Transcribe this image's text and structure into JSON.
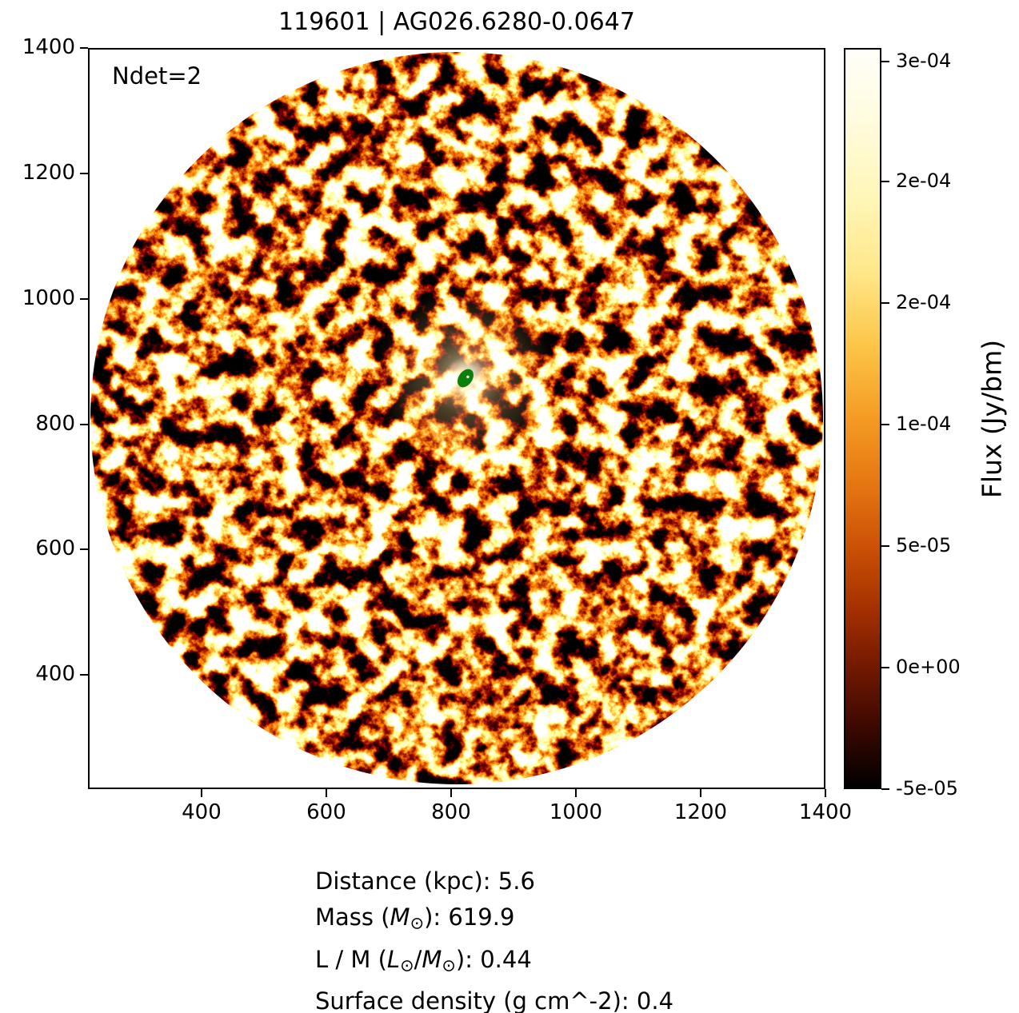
{
  "title": "119601 | AG026.6280-0.0647",
  "annotation": {
    "text": "Ndet=2"
  },
  "chart_data": {
    "type": "heatmap",
    "title": "119601 | AG026.6280-0.0647",
    "xlabel": "",
    "ylabel": "",
    "xlim": [
      218,
      1400
    ],
    "ylim": [
      218,
      1400
    ],
    "x_ticks": [
      400,
      600,
      800,
      1000,
      1200,
      1400
    ],
    "y_ticks": [
      400,
      600,
      800,
      1000,
      1200,
      1400
    ],
    "grid": false,
    "legend": "none",
    "annotations": [
      {
        "text": "Ndet=2",
        "x": 270,
        "y": 1360
      }
    ],
    "field": {
      "shape": "circular-aperture",
      "center_x": 810,
      "center_y": 810,
      "radius": 590,
      "background": "#ffffff",
      "description": "Mottled interferometric continuum noise map rendered in a hot/afmhot colormap: black and dark-maroon patches interleaved with bright orange and cream filaments, slightly brighter near the centre of the field"
    },
    "marker": {
      "shape": "ellipse",
      "x": 824,
      "y": 873,
      "color": "#0b800b",
      "dot_color": "#ffffff",
      "rotation_deg": 35,
      "description": "filled green detection ellipse with tiny white centre dot, surrounded by a bright cream emission clump"
    },
    "colorbar": {
      "label": "Flux (Jy/bm)",
      "ticks": [
        {
          "label": "3e-04",
          "pos": 0.018
        },
        {
          "label": "2e-04",
          "pos": 0.18
        },
        {
          "label": "2e-04",
          "pos": 0.344
        },
        {
          "label": "1e-04",
          "pos": 0.508
        },
        {
          "label": "5e-05",
          "pos": 0.672
        },
        {
          "label": "0e+00",
          "pos": 0.836
        },
        {
          "label": "-5e-05",
          "pos": 1.0
        }
      ],
      "gradient_stops": [
        {
          "pos": 0.0,
          "color": "#fffef9"
        },
        {
          "pos": 0.08,
          "color": "#fffce3"
        },
        {
          "pos": 0.2,
          "color": "#fff6b8"
        },
        {
          "pos": 0.3,
          "color": "#ffe88a"
        },
        {
          "pos": 0.4,
          "color": "#fcc648"
        },
        {
          "pos": 0.5,
          "color": "#f49b23"
        },
        {
          "pos": 0.6,
          "color": "#e37210"
        },
        {
          "pos": 0.68,
          "color": "#c94e05"
        },
        {
          "pos": 0.76,
          "color": "#a33000"
        },
        {
          "pos": 0.84,
          "color": "#701800"
        },
        {
          "pos": 0.92,
          "color": "#3a0800"
        },
        {
          "pos": 1.0,
          "color": "#000000"
        }
      ]
    }
  },
  "info_lines": [
    {
      "segments": [
        {
          "t": "Distance (kpc): 5.6"
        }
      ]
    },
    {
      "segments": [
        {
          "t": "Mass ("
        },
        {
          "t": "M",
          "style": "i"
        },
        {
          "t": "⊙",
          "style": "sub"
        },
        {
          "t": "): 619.9"
        }
      ]
    },
    {
      "segments": [
        {
          "t": "L / M ("
        },
        {
          "t": "L",
          "style": "i"
        },
        {
          "t": "⊙",
          "style": "sub"
        },
        {
          "t": "/"
        },
        {
          "t": "M",
          "style": "i"
        },
        {
          "t": "⊙",
          "style": "sub"
        },
        {
          "t": "): 0.44"
        }
      ]
    },
    {
      "segments": [
        {
          "t": "Surface density (g cm^-2): 0.4"
        }
      ]
    }
  ]
}
